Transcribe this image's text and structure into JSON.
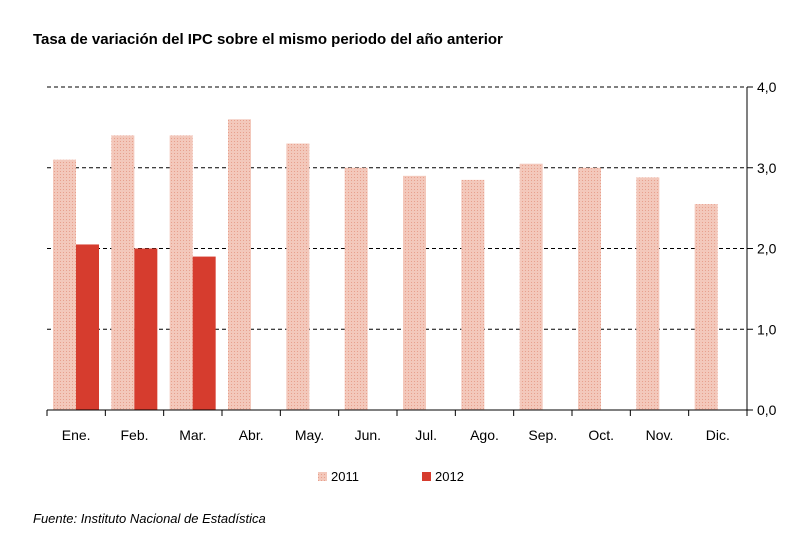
{
  "title": "Tasa de variación del IPC sobre el mismo periodo del año anterior",
  "source": "Fuente: Instituto Nacional de Estadística",
  "colors": {
    "series_2011": "#f3c8bb",
    "series_2012": "#d63c2e",
    "grid": "#000000"
  },
  "chart_data": {
    "type": "bar",
    "title": "Tasa de variación del IPC sobre el mismo periodo del año anterior",
    "categories": [
      "Ene.",
      "Feb.",
      "Mar.",
      "Abr.",
      "May.",
      "Jun.",
      "Jul.",
      "Ago.",
      "Sep.",
      "Oct.",
      "Nov.",
      "Dic."
    ],
    "series": [
      {
        "name": "2011",
        "values": [
          3.1,
          3.4,
          3.4,
          3.6,
          3.3,
          3.0,
          2.9,
          2.85,
          3.05,
          3.0,
          2.88,
          2.55
        ]
      },
      {
        "name": "2012",
        "values": [
          2.05,
          2.0,
          1.9,
          null,
          null,
          null,
          null,
          null,
          null,
          null,
          null,
          null
        ]
      }
    ],
    "ylim": [
      0,
      4
    ],
    "yticks": [
      "0,0",
      "1,0",
      "2,0",
      "3,0",
      "4,0"
    ],
    "yaxis_position": "right",
    "grid": "dashed horizontal",
    "legend_position": "bottom"
  }
}
